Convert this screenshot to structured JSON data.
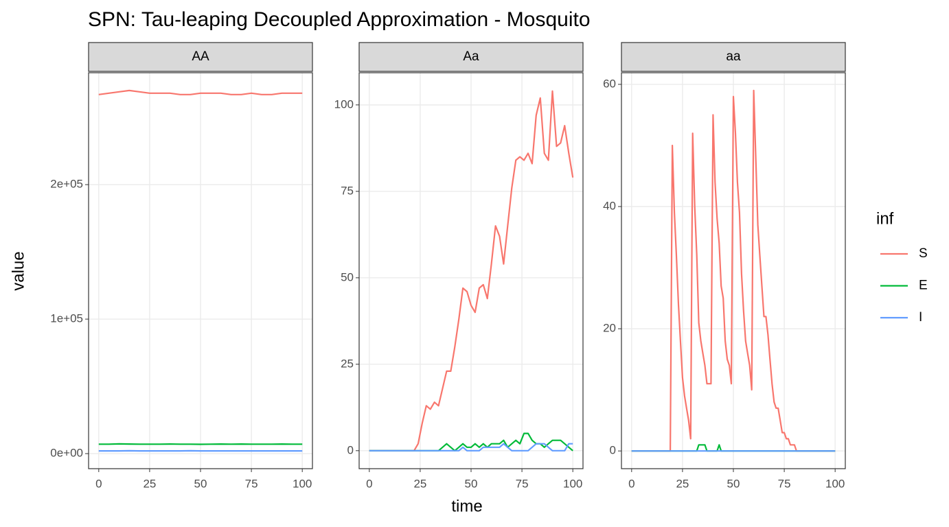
{
  "title": "SPN: Tau-leaping Decoupled Approximation - Mosquito",
  "x_label": "time",
  "y_label": "value",
  "legend": {
    "title": "inf",
    "entries": [
      {
        "name": "S",
        "color": "#F8766D"
      },
      {
        "name": "E",
        "color": "#00BA38"
      },
      {
        "name": "I",
        "color": "#619CFF"
      }
    ]
  },
  "chart_data": [
    {
      "type": "line",
      "title": "AA",
      "x": [
        0,
        5,
        10,
        15,
        20,
        25,
        30,
        35,
        40,
        45,
        50,
        55,
        60,
        65,
        70,
        75,
        80,
        85,
        90,
        95,
        100
      ],
      "series": [
        {
          "values": [
            267000,
            268000,
            269000,
            270000,
            269000,
            268000,
            268000,
            268000,
            267000,
            267000,
            268000,
            268000,
            268000,
            267000,
            267000,
            268000,
            267000,
            267000,
            268000,
            268000,
            268000
          ]
        },
        {
          "values": [
            7000,
            7000,
            7200,
            7100,
            7000,
            7000,
            7000,
            7100,
            7000,
            7000,
            6900,
            7000,
            7100,
            7000,
            7100,
            7000,
            7000,
            7000,
            7100,
            7000,
            7000
          ]
        },
        {
          "values": [
            2000,
            2000,
            2000,
            2100,
            2000,
            2000,
            2000,
            2000,
            2000,
            2100,
            2000,
            2000,
            2000,
            2000,
            2000,
            2000,
            2000,
            2000,
            2000,
            2000,
            2000
          ]
        }
      ],
      "xlim": [
        -5,
        105
      ],
      "xticks": [
        0,
        25,
        50,
        75,
        100
      ],
      "ylim": [
        -11200,
        283200
      ],
      "yticks": [
        {
          "value": 0,
          "label": "0e+00"
        },
        {
          "value": 100000,
          "label": "1e+05"
        },
        {
          "value": 200000,
          "label": "2e+05"
        }
      ]
    },
    {
      "type": "line",
      "title": "Aa",
      "x": [
        0,
        2,
        4,
        6,
        8,
        10,
        12,
        14,
        16,
        18,
        20,
        22,
        24,
        26,
        28,
        30,
        32,
        34,
        36,
        38,
        40,
        42,
        44,
        46,
        48,
        50,
        52,
        54,
        56,
        58,
        60,
        62,
        64,
        66,
        68,
        70,
        72,
        74,
        76,
        78,
        80,
        82,
        84,
        86,
        88,
        90,
        92,
        94,
        96,
        98,
        100
      ],
      "series": [
        {
          "values": [
            0,
            0,
            0,
            0,
            0,
            0,
            0,
            0,
            0,
            0,
            0,
            0,
            2,
            8,
            13,
            12,
            14,
            13,
            18,
            23,
            23,
            30,
            38,
            47,
            46,
            42,
            40,
            47,
            48,
            44,
            54,
            65,
            62,
            54,
            65,
            76,
            84,
            85,
            84,
            86,
            83,
            97,
            102,
            86,
            84,
            104,
            88,
            89,
            94,
            86,
            79
          ]
        },
        {
          "values": [
            0,
            0,
            0,
            0,
            0,
            0,
            0,
            0,
            0,
            0,
            0,
            0,
            0,
            0,
            0,
            0,
            0,
            0,
            1,
            2,
            1,
            0,
            1,
            2,
            1,
            1,
            2,
            1,
            2,
            1,
            2,
            2,
            2,
            3,
            1,
            2,
            3,
            2,
            5,
            5,
            3,
            2,
            2,
            1,
            2,
            3,
            3,
            3,
            2,
            1,
            0
          ]
        },
        {
          "values": [
            0,
            0,
            0,
            0,
            0,
            0,
            0,
            0,
            0,
            0,
            0,
            0,
            0,
            0,
            0,
            0,
            0,
            0,
            0,
            0,
            0,
            0,
            0,
            1,
            0,
            0,
            0,
            0,
            1,
            1,
            1,
            1,
            1,
            2,
            1,
            0,
            0,
            0,
            0,
            0,
            1,
            2,
            2,
            2,
            1,
            0,
            0,
            0,
            0,
            2,
            2
          ]
        }
      ],
      "xlim": [
        -5,
        105
      ],
      "xticks": [
        0,
        25,
        50,
        75,
        100
      ],
      "ylim": [
        -5.2,
        109.3
      ],
      "yticks": [
        0,
        25,
        50,
        75,
        100
      ]
    },
    {
      "type": "line",
      "title": "aa",
      "x": [
        0,
        1,
        2,
        3,
        4,
        5,
        6,
        7,
        8,
        9,
        10,
        11,
        12,
        13,
        14,
        15,
        16,
        17,
        18,
        19,
        20,
        21,
        22,
        23,
        24,
        25,
        26,
        27,
        28,
        29,
        30,
        31,
        32,
        33,
        34,
        35,
        36,
        37,
        38,
        39,
        40,
        41,
        42,
        43,
        44,
        45,
        46,
        47,
        48,
        49,
        50,
        51,
        52,
        53,
        54,
        55,
        56,
        57,
        58,
        59,
        60,
        61,
        62,
        63,
        64,
        65,
        66,
        67,
        68,
        69,
        70,
        71,
        72,
        73,
        74,
        75,
        76,
        77,
        78,
        79,
        80,
        81,
        82,
        83,
        84,
        85,
        86,
        87,
        88,
        89,
        90,
        91,
        92,
        93,
        94,
        95,
        96,
        97,
        98,
        99,
        100
      ],
      "series": [
        {
          "values": [
            0,
            0,
            0,
            0,
            0,
            0,
            0,
            0,
            0,
            0,
            0,
            0,
            0,
            0,
            0,
            0,
            0,
            0,
            0,
            0,
            50,
            39,
            32,
            24,
            18,
            12,
            9,
            7,
            5,
            2,
            52,
            40,
            32,
            21,
            18,
            16,
            14,
            11,
            11,
            11,
            55,
            44,
            38,
            34,
            27,
            25,
            18,
            15,
            14,
            11,
            58,
            52,
            44,
            39,
            29,
            23,
            18,
            16,
            14,
            10,
            59,
            48,
            37,
            32,
            27,
            22,
            22,
            19,
            15,
            11,
            8,
            7,
            7,
            5,
            3,
            3,
            2,
            2,
            1,
            1,
            1,
            0,
            0,
            0,
            0,
            0,
            0,
            0,
            0,
            0,
            0,
            0,
            0,
            0,
            0,
            0,
            0,
            0,
            0,
            0,
            0
          ]
        },
        {
          "values": [
            0,
            0,
            0,
            0,
            0,
            0,
            0,
            0,
            0,
            0,
            0,
            0,
            0,
            0,
            0,
            0,
            0,
            0,
            0,
            0,
            0,
            0,
            0,
            0,
            0,
            0,
            0,
            0,
            0,
            0,
            0,
            0,
            0,
            1,
            1,
            1,
            1,
            0,
            0,
            0,
            0,
            0,
            0,
            1,
            0,
            0,
            0,
            0,
            0,
            0,
            0,
            0,
            0,
            0,
            0,
            0,
            0,
            0,
            0,
            0,
            0,
            0,
            0,
            0,
            0,
            0,
            0,
            0,
            0,
            0,
            0,
            0,
            0,
            0,
            0,
            0,
            0,
            0,
            0,
            0,
            0,
            0,
            0,
            0,
            0,
            0,
            0,
            0,
            0,
            0,
            0,
            0,
            0,
            0,
            0,
            0,
            0,
            0,
            0,
            0,
            0
          ]
        },
        {
          "values": [
            0,
            0,
            0,
            0,
            0,
            0,
            0,
            0,
            0,
            0,
            0,
            0,
            0,
            0,
            0,
            0,
            0,
            0,
            0,
            0,
            0,
            0,
            0,
            0,
            0,
            0,
            0,
            0,
            0,
            0,
            0,
            0,
            0,
            0,
            0,
            0,
            0,
            0,
            0,
            0,
            0,
            0,
            0,
            0,
            0,
            0,
            0,
            0,
            0,
            0,
            0,
            0,
            0,
            0,
            0,
            0,
            0,
            0,
            0,
            0,
            0,
            0,
            0,
            0,
            0,
            0,
            0,
            0,
            0,
            0,
            0,
            0,
            0,
            0,
            0,
            0,
            0,
            0,
            0,
            0,
            0,
            0,
            0,
            0,
            0,
            0,
            0,
            0,
            0,
            0,
            0,
            0,
            0,
            0,
            0,
            0,
            0,
            0,
            0,
            0,
            0
          ]
        }
      ],
      "xlim": [
        -5,
        105
      ],
      "xticks": [
        0,
        25,
        50,
        75,
        100
      ],
      "ylim": [
        -2.9,
        61.9
      ],
      "yticks": [
        0,
        20,
        40,
        60
      ]
    }
  ]
}
